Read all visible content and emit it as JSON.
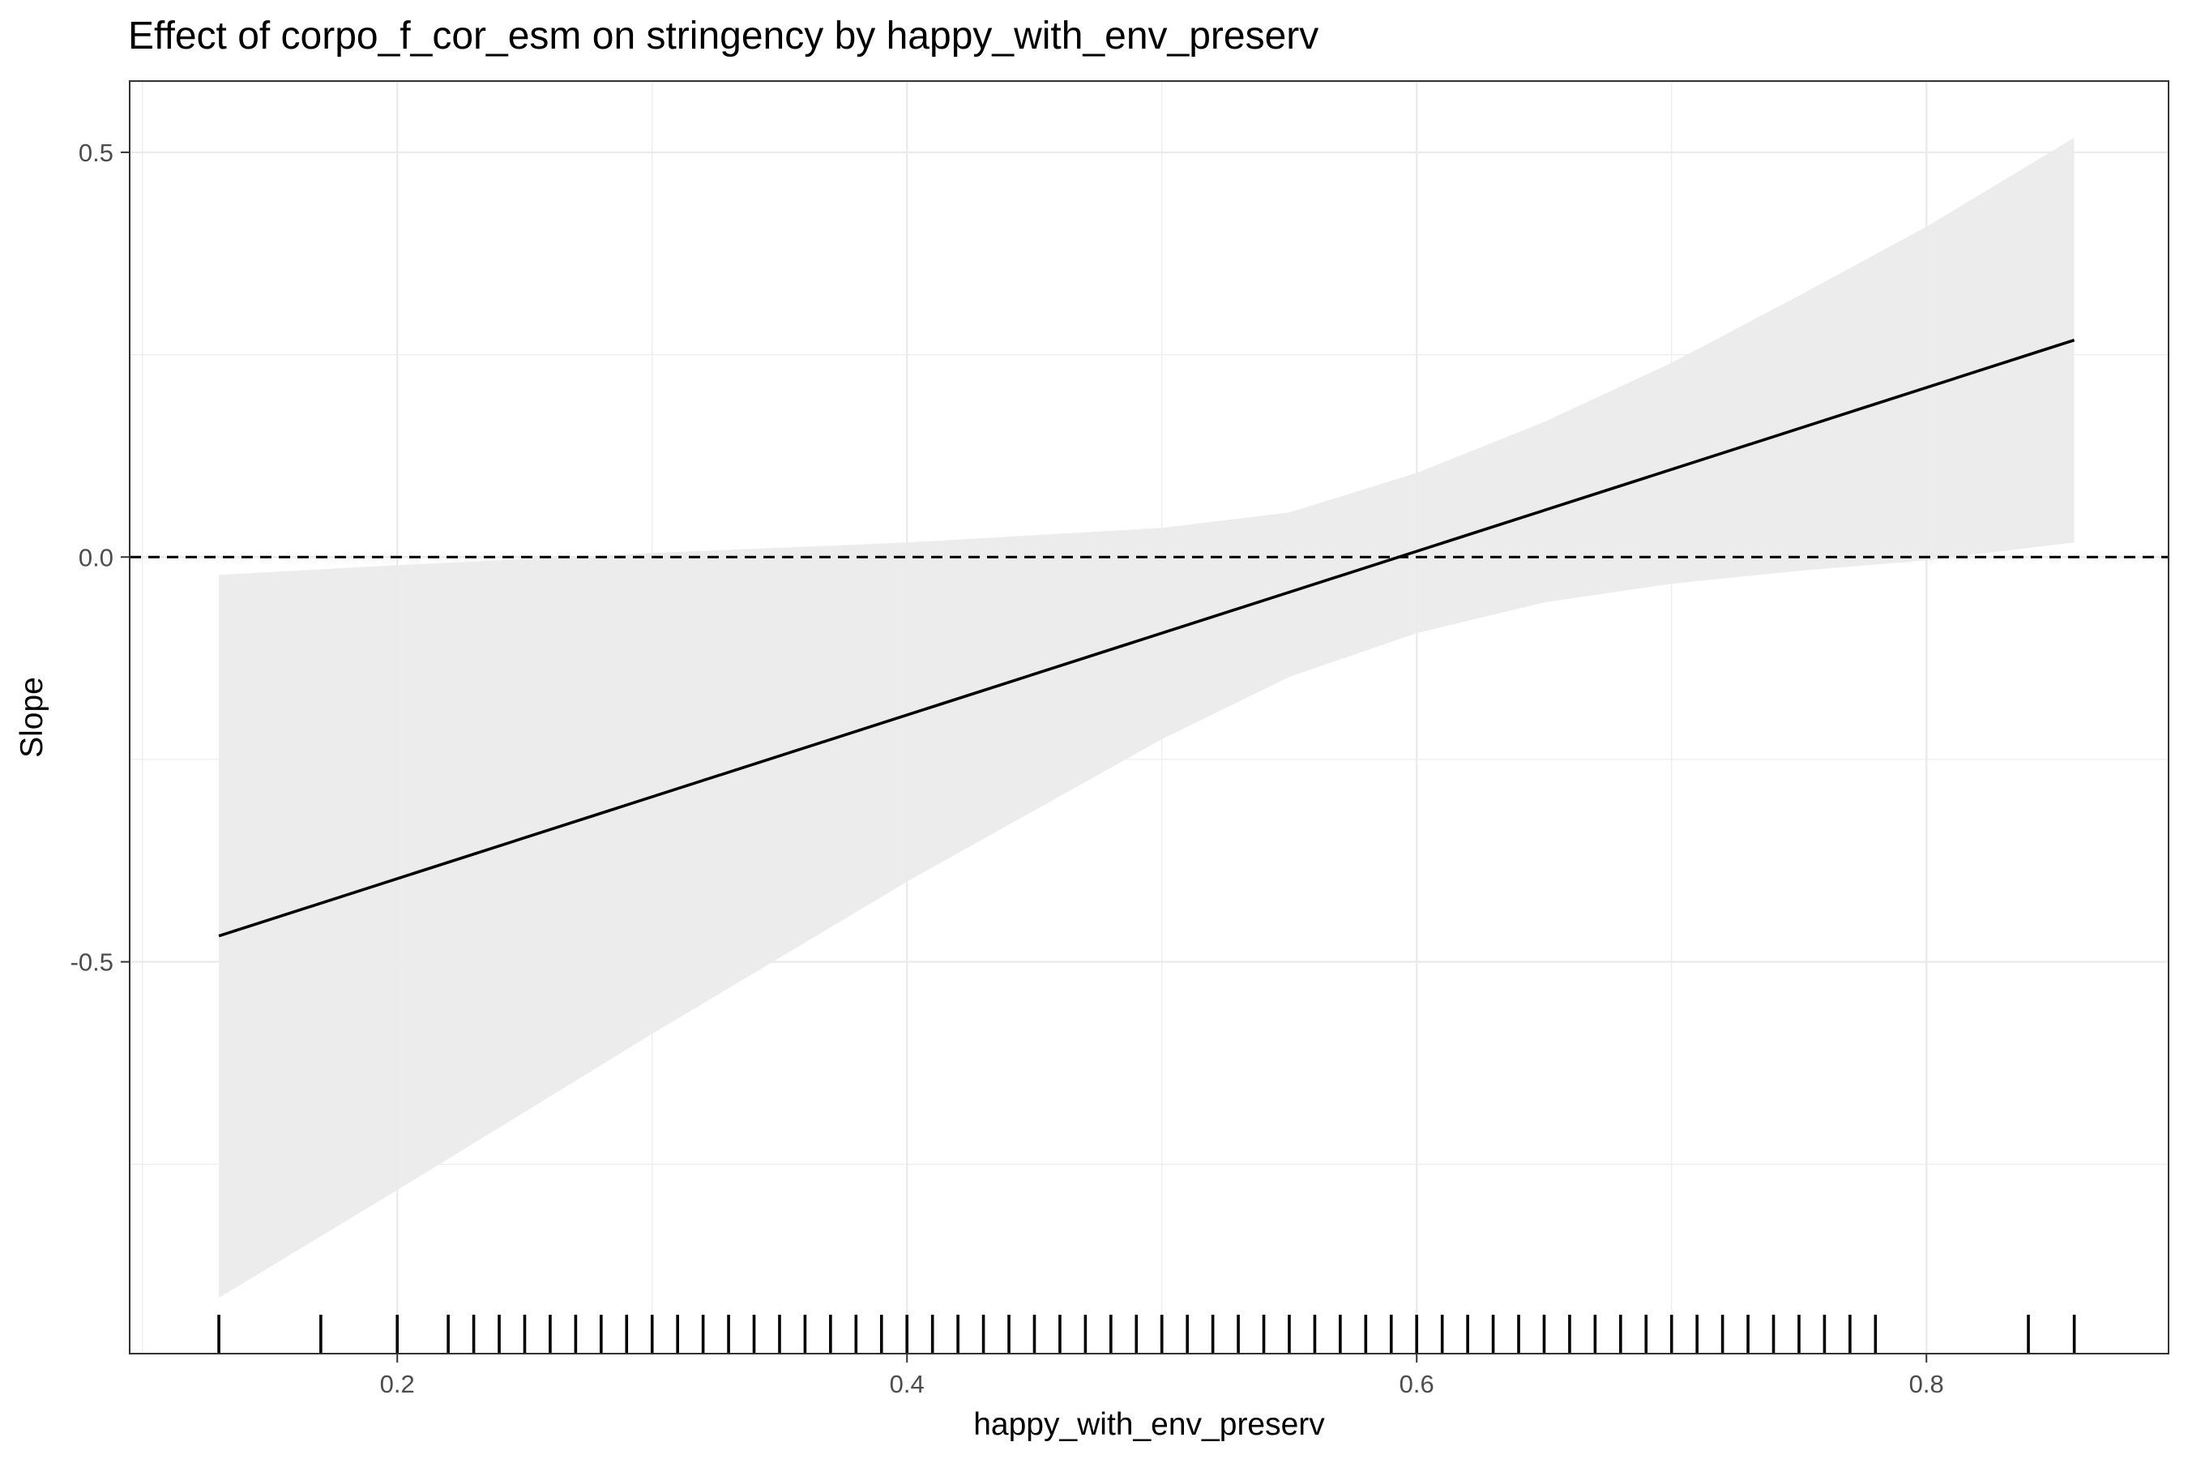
{
  "chart_data": {
    "type": "line",
    "title": "Effect of corpo_f_cor_esm on stringency by happy_with_env_preserv",
    "xlabel": "happy_with_env_preserv",
    "ylabel": "Slope",
    "xlim": [
      0.095,
      0.895
    ],
    "ylim": [
      -0.984,
      0.588
    ],
    "x_ticks": [
      0.2,
      0.4,
      0.6,
      0.8
    ],
    "x_tick_labels": [
      "0.2",
      "0.4",
      "0.6",
      "0.8"
    ],
    "y_ticks": [
      -0.5,
      0.0,
      0.5
    ],
    "y_tick_labels": [
      "-0.5",
      "0.0",
      "0.5"
    ],
    "grid": true,
    "reference_line": {
      "y": 0,
      "style": "dashed"
    },
    "series": [
      {
        "x": [
          0.13,
          0.858
        ],
        "y": [
          -0.468,
          0.268
        ],
        "color": "#000000"
      }
    ],
    "confidence_band": {
      "x": [
        0.13,
        0.2,
        0.3,
        0.4,
        0.5,
        0.55,
        0.6,
        0.65,
        0.7,
        0.75,
        0.8,
        0.858
      ],
      "lower": [
        -0.915,
        -0.782,
        -0.589,
        -0.401,
        -0.225,
        -0.148,
        -0.094,
        -0.056,
        -0.033,
        -0.017,
        -0.004,
        0.018
      ],
      "upper": [
        -0.022,
        -0.01,
        0.005,
        0.018,
        0.036,
        0.055,
        0.104,
        0.167,
        0.24,
        0.323,
        0.408,
        0.518
      ],
      "color": "#ebebeb"
    },
    "rug_x": [
      0.13,
      0.17,
      0.2,
      0.22,
      0.23,
      0.24,
      0.25,
      0.26,
      0.27,
      0.28,
      0.29,
      0.3,
      0.31,
      0.32,
      0.33,
      0.34,
      0.35,
      0.36,
      0.37,
      0.38,
      0.39,
      0.4,
      0.41,
      0.42,
      0.43,
      0.44,
      0.45,
      0.46,
      0.47,
      0.48,
      0.49,
      0.5,
      0.51,
      0.52,
      0.53,
      0.54,
      0.55,
      0.56,
      0.57,
      0.58,
      0.59,
      0.6,
      0.61,
      0.62,
      0.63,
      0.64,
      0.65,
      0.66,
      0.67,
      0.68,
      0.69,
      0.7,
      0.71,
      0.72,
      0.73,
      0.74,
      0.75,
      0.76,
      0.77,
      0.78,
      0.84,
      0.858
    ]
  }
}
